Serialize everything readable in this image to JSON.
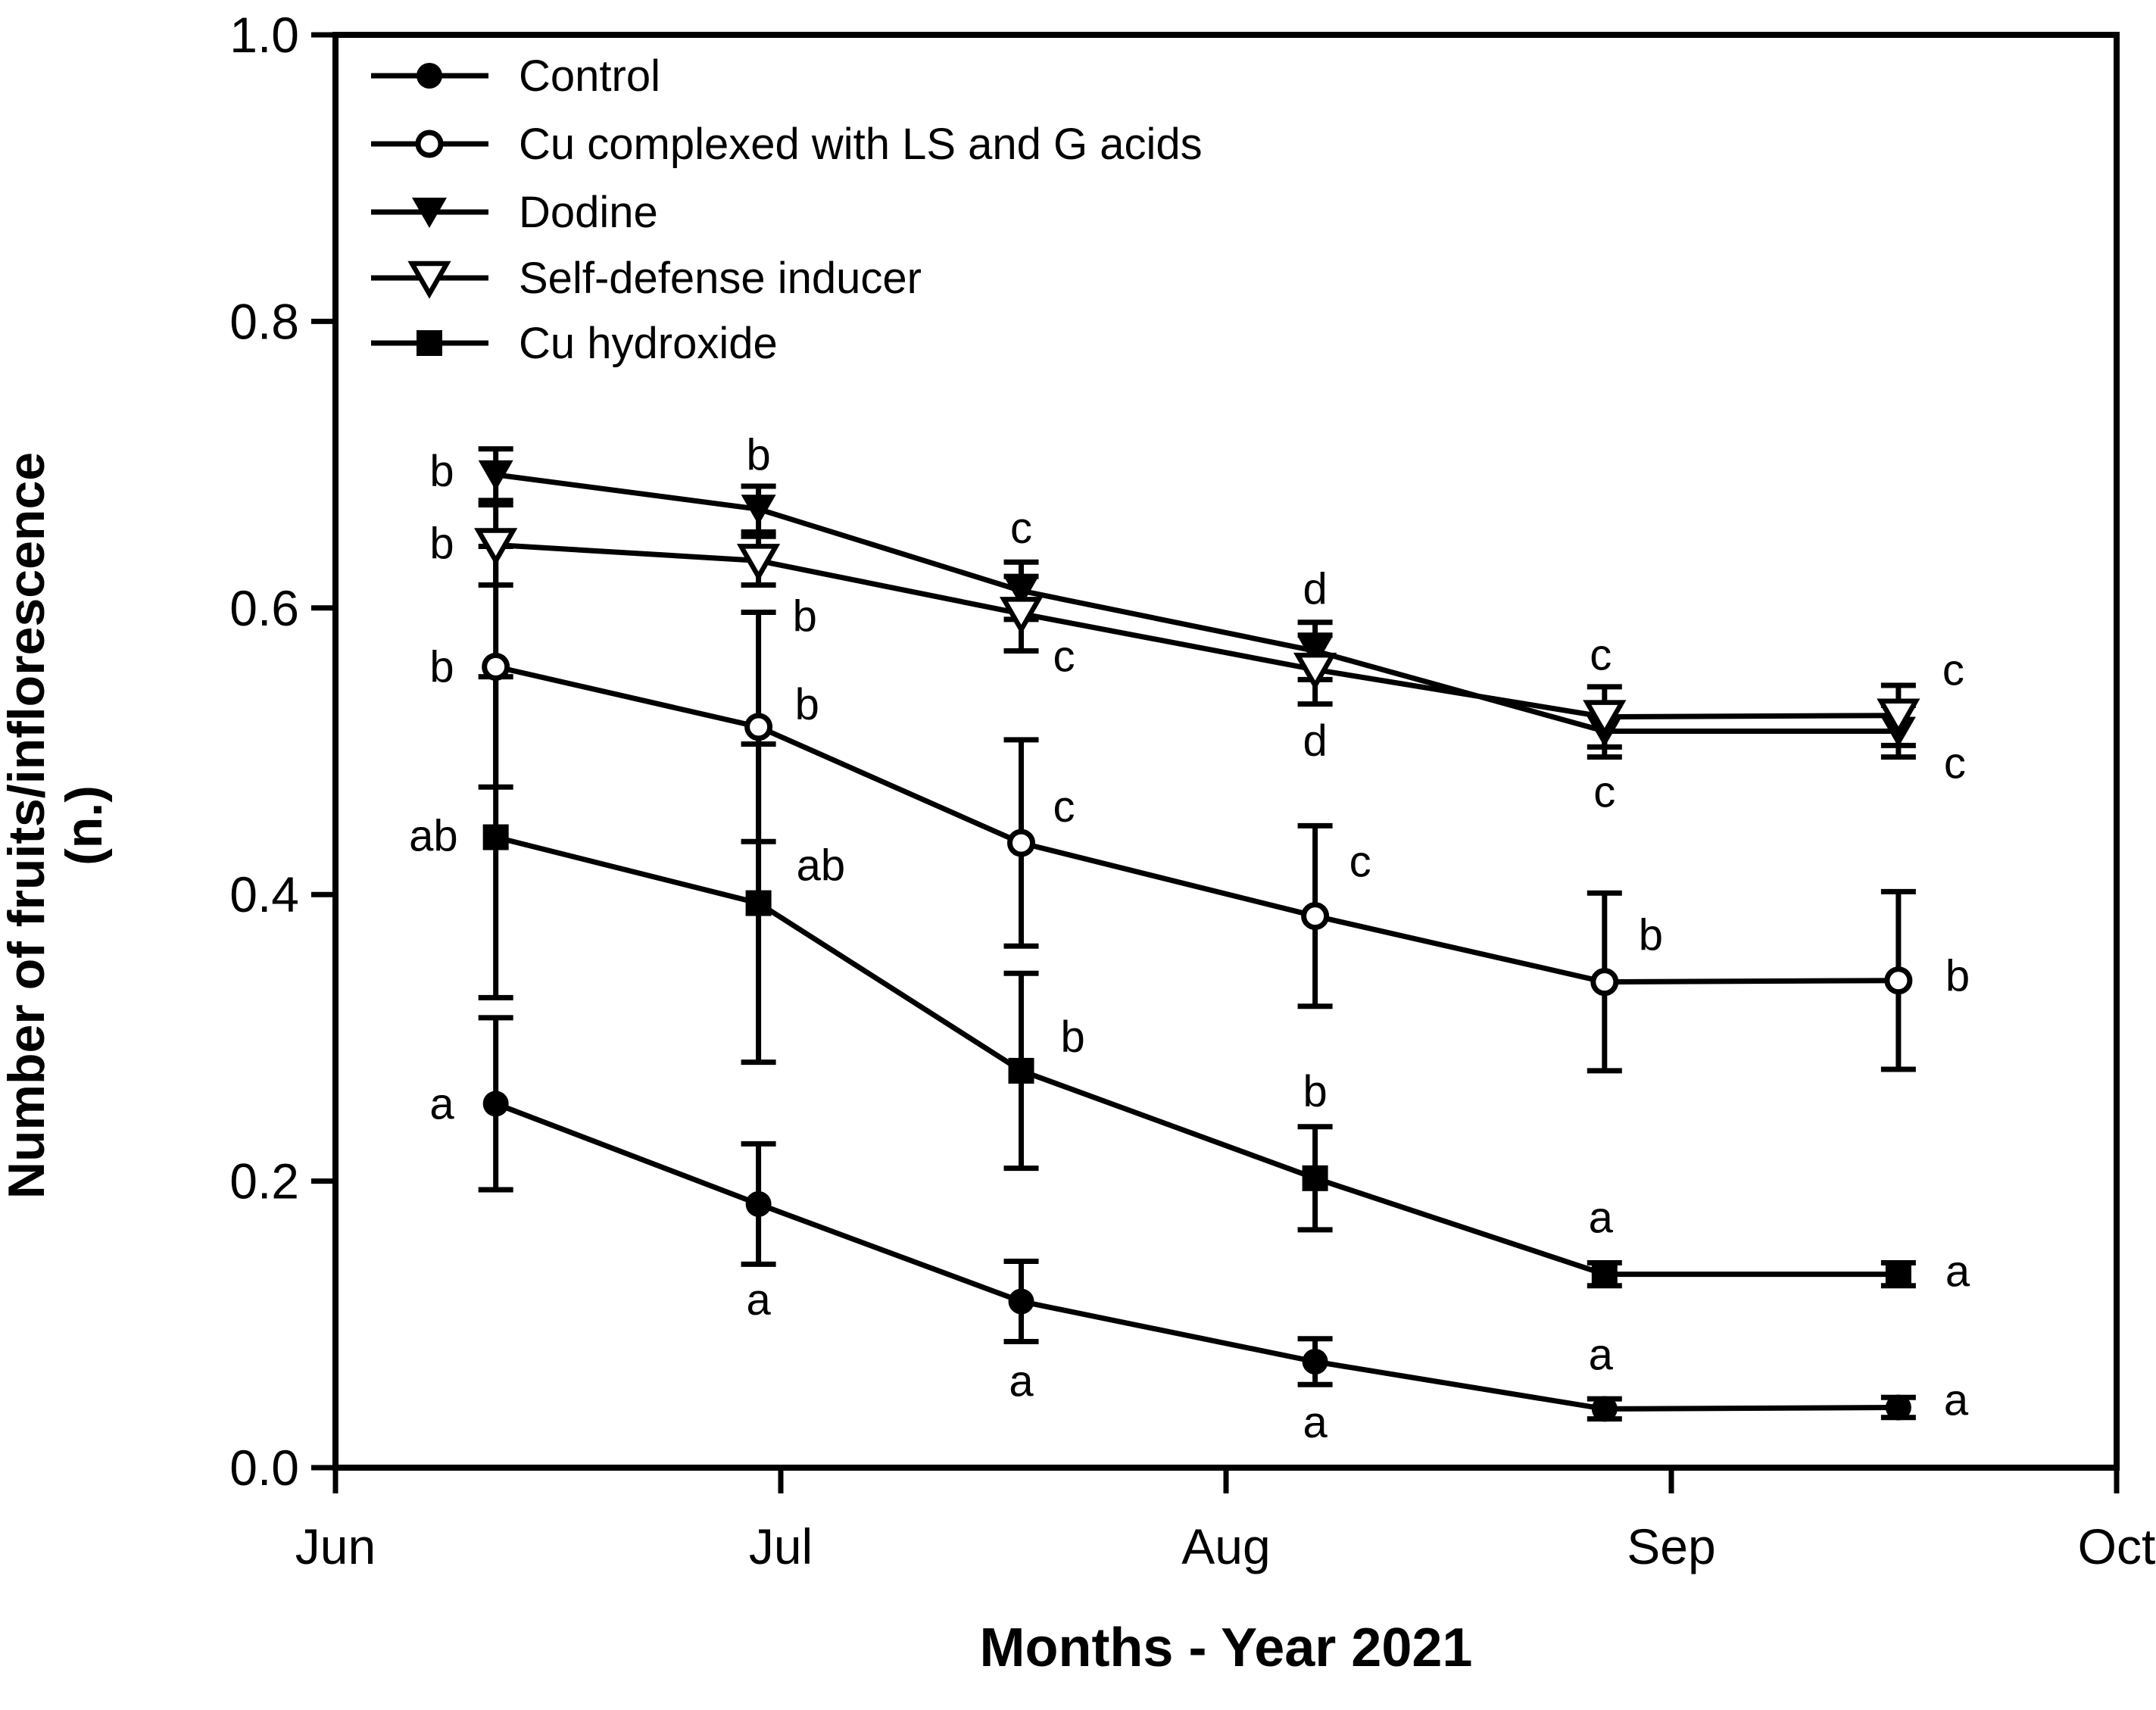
{
  "figure": {
    "background": "#ffffff",
    "foreground": "#000000"
  },
  "chart_data": {
    "type": "line",
    "title": "",
    "xlabel": "Months - Year 2021",
    "ylabel_line1": "Number of fruits/inflorescence",
    "ylabel_line2": "(n.)",
    "grid": false,
    "legend_position": "top-left",
    "x_axis": {
      "tick_labels": [
        "Jun",
        "Jul",
        "Aug",
        "Sep",
        "Oct"
      ],
      "tick_positions_months": [
        0,
        1,
        2,
        3,
        4
      ],
      "range_months": [
        0,
        4
      ]
    },
    "y_axis": {
      "tick_labels": [
        "0.0",
        "0.2",
        "0.4",
        "0.6",
        "0.8",
        "1.0"
      ],
      "tick_values": [
        0.0,
        0.2,
        0.4,
        0.6,
        0.8,
        1.0
      ],
      "range": [
        0,
        1
      ]
    },
    "x_months_offsets": [
      0.36,
      0.95,
      1.54,
      2.2,
      2.85,
      3.51
    ],
    "series": [
      {
        "name": "Control",
        "marker": "circle-filled",
        "values": [
          0.254,
          0.184,
          0.116,
          0.074,
          0.041,
          0.042
        ],
        "errors": [
          0.06,
          0.042,
          0.028,
          0.016,
          0.007,
          0.007
        ],
        "letters": [
          {
            "text": "a",
            "anchor": "end",
            "dx": -55,
            "dy": 20
          },
          {
            "text": "a",
            "anchor": "middle",
            "dx": 0,
            "dy": 146
          },
          {
            "text": "a",
            "anchor": "middle",
            "dx": 0,
            "dy": 125
          },
          {
            "text": "a",
            "anchor": "middle",
            "dx": 0,
            "dy": 100
          },
          {
            "text": "a",
            "anchor": "middle",
            "dx": -5,
            "dy": -52
          },
          {
            "text": "a",
            "anchor": "start",
            "dx": 60,
            "dy": 10
          }
        ]
      },
      {
        "name": "Cu complexed with LS and G acids",
        "marker": "circle-open",
        "values": [
          0.559,
          0.517,
          0.436,
          0.385,
          0.339,
          0.34
        ],
        "errors": [
          0.084,
          0.08,
          0.072,
          0.063,
          0.062,
          0.062
        ],
        "letters": [
          {
            "text": "b",
            "anchor": "end",
            "dx": -55,
            "dy": 20
          },
          {
            "text": "b",
            "anchor": "start",
            "dx": 48,
            "dy": -10
          },
          {
            "text": "c",
            "anchor": "start",
            "dx": 42,
            "dy": -28
          },
          {
            "text": "c",
            "anchor": "start",
            "dx": 45,
            "dy": -52
          },
          {
            "text": "b",
            "anchor": "start",
            "dx": 45,
            "dy": -42
          },
          {
            "text": "b",
            "anchor": "start",
            "dx": 62,
            "dy": 14
          }
        ]
      },
      {
        "name": "Dodine",
        "marker": "triangle-down-filled",
        "values": [
          0.693,
          0.669,
          0.612,
          0.57,
          0.514,
          0.514
        ],
        "errors": [
          0.018,
          0.016,
          0.02,
          0.02,
          0.018,
          0.018
        ],
        "letters": [
          {
            "text": "b",
            "anchor": "end",
            "dx": -55,
            "dy": 15
          },
          {
            "text": "b",
            "anchor": "middle",
            "dx": 0,
            "dy": -52
          },
          {
            "text": "c",
            "anchor": "middle",
            "dx": 0,
            "dy": -63
          },
          {
            "text": "d",
            "anchor": "middle",
            "dx": 0,
            "dy": -62
          },
          {
            "text": "c",
            "anchor": "middle",
            "dx": 0,
            "dy": 100
          },
          {
            "text": "c",
            "anchor": "start",
            "dx": 60,
            "dy": 62
          }
        ]
      },
      {
        "name": "Self-defense inducer",
        "marker": "triangle-down-open",
        "values": [
          0.644,
          0.633,
          0.596,
          0.557,
          0.524,
          0.525
        ],
        "errors": [
          0.028,
          0.017,
          0.026,
          0.024,
          0.021,
          0.021
        ],
        "letters": [
          {
            "text": "b",
            "anchor": "end",
            "dx": -55,
            "dy": 18
          },
          {
            "text": "b",
            "anchor": "start",
            "dx": 45,
            "dy": 93
          },
          {
            "text": "c",
            "anchor": "start",
            "dx": 42,
            "dy": 76
          },
          {
            "text": "d",
            "anchor": "middle",
            "dx": 0,
            "dy": 114
          },
          {
            "text": "c",
            "anchor": "middle",
            "dx": -5,
            "dy": -62
          },
          {
            "text": "c",
            "anchor": "start",
            "dx": 58,
            "dy": -40
          }
        ]
      },
      {
        "name": "Cu hydroxide",
        "marker": "square-filled",
        "values": [
          0.44,
          0.394,
          0.277,
          0.202,
          0.135,
          0.135
        ],
        "errors": [
          0.112,
          0.111,
          0.068,
          0.036,
          0.008,
          0.008
        ],
        "letters": [
          {
            "text": "ab",
            "anchor": "end",
            "dx": -50,
            "dy": 18
          },
          {
            "text": "ab",
            "anchor": "start",
            "dx": 50,
            "dy": -30
          },
          {
            "text": "b",
            "anchor": "start",
            "dx": 52,
            "dy": -25
          },
          {
            "text": "b",
            "anchor": "middle",
            "dx": 0,
            "dy": -95
          },
          {
            "text": "a",
            "anchor": "middle",
            "dx": -5,
            "dy": -55
          },
          {
            "text": "a",
            "anchor": "start",
            "dx": 62,
            "dy": 16
          }
        ]
      }
    ]
  }
}
